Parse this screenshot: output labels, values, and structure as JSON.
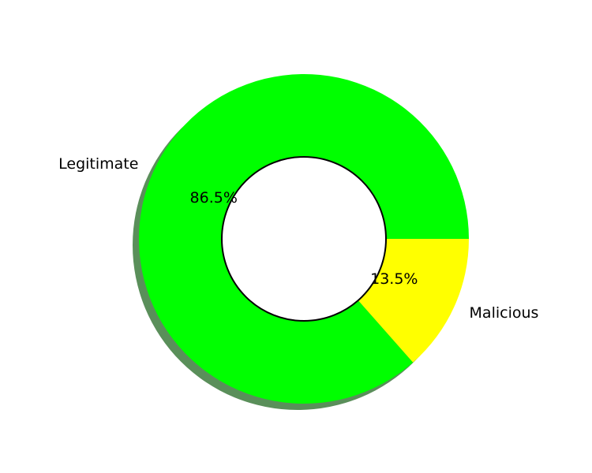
{
  "chart_data": {
    "type": "pie",
    "style": "donut",
    "shadow": true,
    "slices": [
      {
        "label": "Legitimate",
        "value": 86.5,
        "pct_label": "86.5%",
        "color": "#00ff00"
      },
      {
        "label": "Malicious",
        "value": 13.5,
        "pct_label": "13.5%",
        "color": "#ffff00"
      }
    ],
    "center_hole_color": "#ffffff",
    "center_ring_color": "#000000",
    "shadow_color": "#5a8f5a"
  }
}
